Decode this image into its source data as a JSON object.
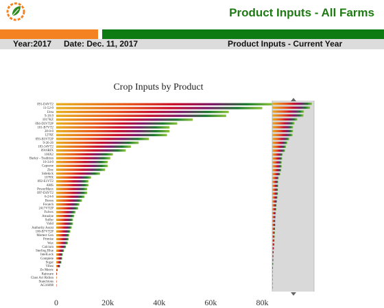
{
  "header": {
    "title": "Product Inputs - All Farms",
    "year_label": "Year:2017",
    "date_label": "Date: Dec. 11, 2017",
    "section_label": "Product Inputs - Current Year",
    "colors": {
      "green": "#0e7b12",
      "orange": "#f58220",
      "title_green": "#1e7a12"
    },
    "logo_icon": "leaf-gear-logo"
  },
  "chart_data": {
    "type": "bar",
    "orientation": "horizontal",
    "title": "Crop Inputs by Product",
    "xlim": [
      0,
      90000
    ],
    "xticks": [
      0,
      20000,
      40000,
      60000,
      80000
    ],
    "xtick_labels": [
      "0",
      "20k",
      "40k",
      "60k",
      "80k"
    ],
    "gradient": [
      "#e8b221",
      "#e8571c",
      "#c8102e",
      "#7a1c6b",
      "#1b7a2e",
      "#8ac23a"
    ],
    "categories": [
      "091-D4VT2",
      "11-52-0",
      "Urea",
      "9-18-9",
      "1017KZ",
      "094-D3VT2P",
      "101-B7VT2",
      "28-0-0",
      "1278Z",
      "093-B3VT2P",
      "9-26-26",
      "183-34VT2",
      "0916RIX",
      "106X2",
      "Barley - Tradition",
      "10-34-0",
      "Capsone",
      "Zinc",
      "Sidekick",
      "1078X",
      "092-E1VT2",
      "AMS",
      "PowerMaxx",
      "097-D4VT2",
      "6-24-6",
      "Boron",
      "Fecatch",
      "2417VT2P",
      "Fulvex",
      "Atrazine",
      "Sulfur",
      "Valid",
      "Authority Assist",
      "100-B7VT2P",
      "Mertect Gen",
      "Primise",
      "Wax",
      "Calcium",
      "Sterling Blue",
      "IntelLock",
      "Complete",
      "Sugar",
      "Vibez",
      "Zn Metric",
      "Raincare",
      "Class Act Ridion",
      "Stanchions",
      "AG16098"
    ],
    "values": [
      84000,
      80000,
      67000,
      66000,
      53000,
      47000,
      44000,
      44000,
      43000,
      36000,
      32000,
      29000,
      27000,
      22000,
      21000,
      20000,
      20000,
      19000,
      17000,
      13500,
      12500,
      12500,
      12000,
      12000,
      11000,
      10000,
      9000,
      8500,
      7500,
      7000,
      6500,
      6500,
      6000,
      5500,
      5000,
      4800,
      4500,
      3800,
      3000,
      2500,
      2300,
      2000,
      1500,
      500,
      300,
      200,
      100,
      50
    ]
  }
}
